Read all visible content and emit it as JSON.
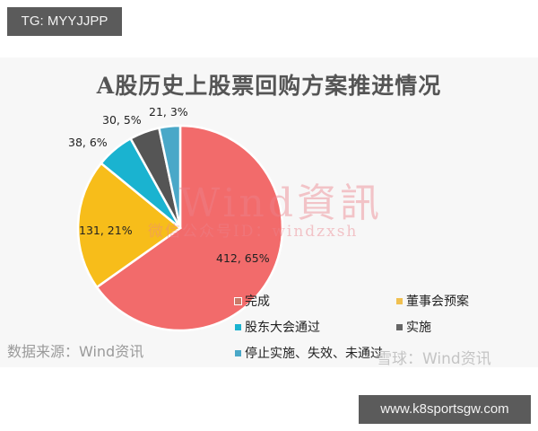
{
  "tags": {
    "top": "TG: MYYJJPP",
    "bottom": "www.k8sportsgw.com"
  },
  "watermark": {
    "main": "Wind資訊",
    "sub": "微信公众号ID：windzxsh",
    "xueqiu": "雪球：Wind资讯"
  },
  "source": "数据来源：Wind资讯",
  "colors": {
    "completed": "#f26b6b",
    "board": "#f7bd1a",
    "shareholder": "#1ab3d0",
    "implementing": "#555555",
    "stopped": "#4aa8c8"
  },
  "chart_data": {
    "type": "pie",
    "title": "A股历史上股票回购方案推进情况",
    "categories": [
      "完成",
      "董事会预案",
      "股东大会通过",
      "实施",
      "停止实施、失效、未通过"
    ],
    "values": [
      412,
      131,
      38,
      30,
      21
    ],
    "percentages": [
      65,
      21,
      6,
      5,
      3
    ],
    "data_labels": [
      "412, 65%",
      "131, 21%",
      "38, 6%",
      "30, 5%",
      "21, 3%"
    ],
    "start_angle": "12 o'clock, clockwise",
    "legend_position": "bottom-right"
  },
  "legend": [
    {
      "label": "完成"
    },
    {
      "label": "董事会预案"
    },
    {
      "label": "股东大会通过"
    },
    {
      "label": "实施"
    },
    {
      "label": "停止实施、失效、未通过"
    }
  ]
}
